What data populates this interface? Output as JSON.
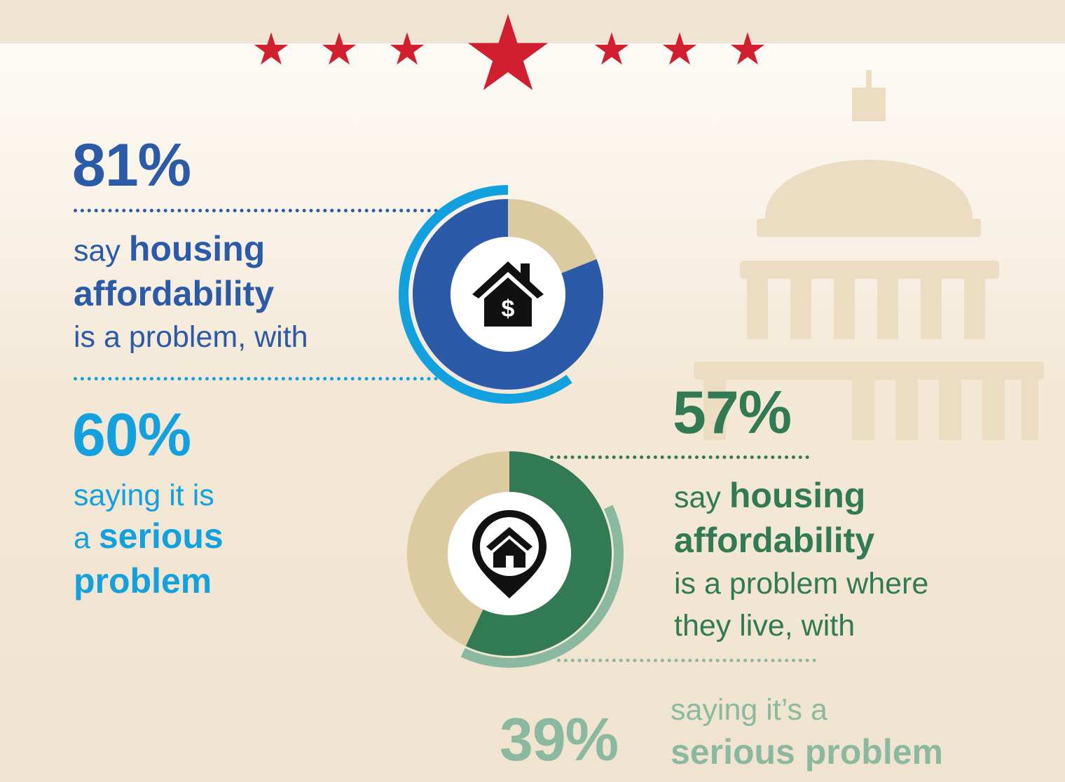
{
  "chart_data": [
    {
      "type": "donut",
      "center_icon": "house-dollar-icon",
      "series": [
        {
          "name": "say housing affordability is a problem",
          "value": 81
        },
        {
          "name": "saying it is a serious problem",
          "value": 60
        }
      ],
      "max": 100
    },
    {
      "type": "donut",
      "center_icon": "house-location-pin-icon",
      "series": [
        {
          "name": "say housing affordability is a problem where they live",
          "value": 57
        },
        {
          "name": "saying it's a serious problem",
          "value": 39
        }
      ],
      "max": 100
    }
  ],
  "stat1": {
    "pct": "81%",
    "l1_a": "say ",
    "l1_b": "housing",
    "l2": "affordability",
    "l3": "is a problem, with"
  },
  "stat2": {
    "pct": "60%",
    "l1": "saying it is",
    "l2_a": "a ",
    "l2_b": "serious",
    "l3": "problem"
  },
  "stat3": {
    "pct": "57%",
    "l1_a": "say ",
    "l1_b": "housing",
    "l2": "affordability",
    "l3": "is a problem where",
    "l4": "they live, with"
  },
  "stat4": {
    "pct": "39%",
    "l1": "saying it’s a",
    "l2": "serious problem"
  },
  "colors": {
    "dark_blue": "#2a5aa8",
    "light_blue": "#12a1de",
    "dark_green": "#327a54",
    "light_green": "#8ab9a0",
    "tan": "#dccaa0",
    "star_red": "#d21f2f",
    "capitol": "#ebdcc2"
  }
}
